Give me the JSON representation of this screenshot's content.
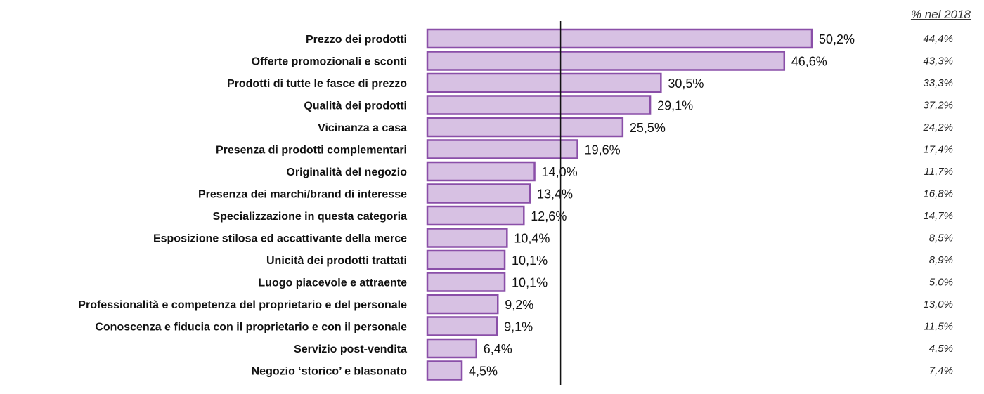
{
  "chart_data": {
    "type": "bar",
    "orientation": "horizontal",
    "categories": [
      "Prezzo dei prodotti",
      "Offerte promozionali e sconti",
      "Prodotti di tutte le fasce di prezzo",
      "Qualità dei prodotti",
      "Vicinanza a casa",
      "Presenza di prodotti complementari",
      "Originalità del negozio",
      "Presenza dei marchi/brand di interesse",
      "Specializzazione in questa categoria",
      "Esposizione stilosa ed accattivante della merce",
      "Unicità dei prodotti trattati",
      "Luogo piacevole e attraente",
      "Professionalità e competenza del proprietario e del personale",
      "Conoscenza e fiducia con il proprietario e con il personale",
      "Servizio post-vendita",
      "Negozio ‘storico’ e blasonato"
    ],
    "values": [
      50.2,
      46.6,
      30.5,
      29.1,
      25.5,
      19.6,
      14.0,
      13.4,
      12.6,
      10.4,
      10.1,
      10.1,
      9.2,
      9.1,
      6.4,
      4.5
    ],
    "value_labels": [
      "50,2%",
      "46,6%",
      "30,5%",
      "29,1%",
      "25,5%",
      "19,6%",
      "14,0%",
      "13,4%",
      "12,6%",
      "10,4%",
      "10,1%",
      "10,1%",
      "9,2%",
      "9,1%",
      "6,4%",
      "4,5%"
    ],
    "comparison_header": "% nel 2018",
    "comparison_values": [
      44.4,
      43.3,
      33.3,
      37.2,
      24.2,
      17.4,
      11.7,
      16.8,
      14.7,
      8.5,
      8.9,
      5.0,
      13.0,
      11.5,
      4.5,
      7.4
    ],
    "comparison_labels": [
      "44,4%",
      "43,3%",
      "33,3%",
      "37,2%",
      "24,2%",
      "17,4%",
      "11,7%",
      "16,8%",
      "14,7%",
      "8,5%",
      "8,9%",
      "5,0%",
      "13,0%",
      "11,5%",
      "4,5%",
      "7,4%"
    ],
    "reference_line_value": 17.4,
    "xlim": [
      0,
      50.2
    ],
    "grid": false,
    "legend": "none",
    "colors": {
      "bar_fill": "#d7c1e3",
      "bar_stroke": "#8a4fa8",
      "reference_line": "#111111"
    }
  }
}
